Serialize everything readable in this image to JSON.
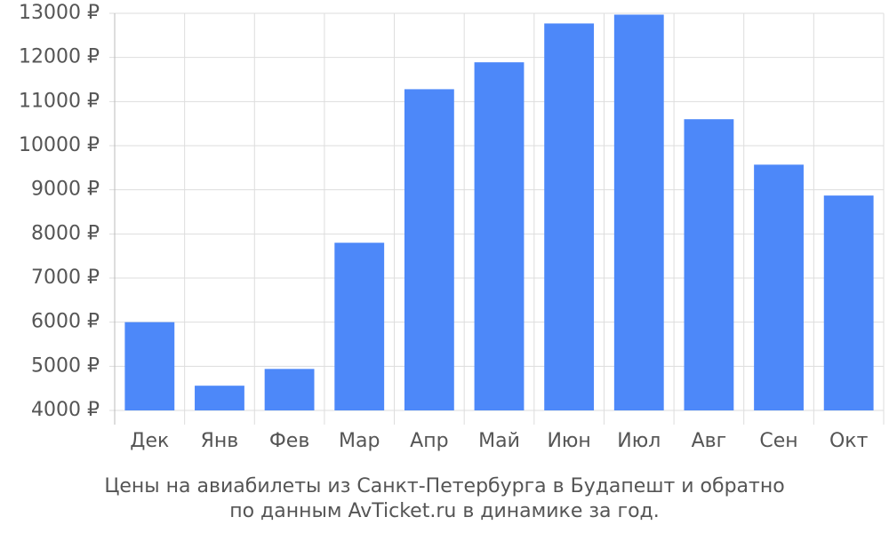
{
  "chart_data": {
    "type": "bar",
    "caption": [
      "Цены на авиабилеты из Санкт-Петербурга в Будапешт и обратно",
      "по данным AvTicket.ru в динамике за год."
    ],
    "categories": [
      "Дек",
      "Янв",
      "Фев",
      "Мар",
      "Апр",
      "Май",
      "Июн",
      "Июл",
      "Авг",
      "Сен",
      "Окт"
    ],
    "values": [
      6000,
      4560,
      4940,
      7800,
      11280,
      11890,
      12770,
      12970,
      10600,
      9570,
      8870
    ],
    "color": "#4d88f9",
    "ylim": [
      4000,
      13000
    ],
    "yticks": [
      {
        "value": 4000,
        "label": "4000 ₽"
      },
      {
        "value": 5000,
        "label": "5000 ₽"
      },
      {
        "value": 6000,
        "label": "6000 ₽"
      },
      {
        "value": 7000,
        "label": "7000 ₽"
      },
      {
        "value": 8000,
        "label": "8000 ₽"
      },
      {
        "value": 9000,
        "label": "9000 ₽"
      },
      {
        "value": 10000,
        "label": "10000 ₽"
      },
      {
        "value": 11000,
        "label": "11000 ₽"
      },
      {
        "value": 12000,
        "label": "12000 ₽"
      },
      {
        "value": 13000,
        "label": "13000 ₽"
      }
    ],
    "grid": true
  }
}
